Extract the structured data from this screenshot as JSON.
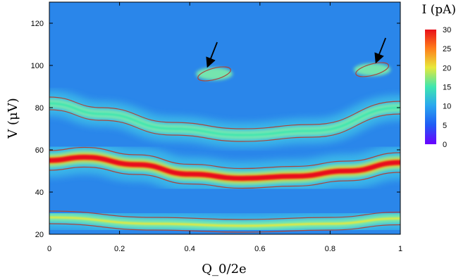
{
  "chart_data": {
    "type": "heatmap",
    "title": "",
    "xlabel": "Q_0/2e",
    "ylabel": "V (μV)",
    "xlim": [
      0,
      1
    ],
    "ylim": [
      20,
      130
    ],
    "x_ticks": [
      "0",
      "0.2",
      "0.4",
      "0.6",
      "0.8",
      "1"
    ],
    "y_ticks": [
      "20",
      "40",
      "60",
      "80",
      "100",
      "120"
    ],
    "colorbar": {
      "label": "I (pA)",
      "range": [
        0,
        30
      ],
      "ticks": [
        "0",
        "5",
        "10",
        "15",
        "20",
        "25",
        "30"
      ]
    },
    "colormap": [
      "#6a00ff",
      "#1f5cf5",
      "#2aa8ee",
      "#3ee6b0",
      "#e8e83a",
      "#ff7a1a",
      "#e8101a"
    ],
    "contour_color": "#a8463c",
    "features": [
      {
        "name": "main current band",
        "x": [
          0,
          0.1,
          0.25,
          0.4,
          0.55,
          0.7,
          0.85,
          1
        ],
        "y": [
          55,
          56.5,
          53,
          48.5,
          46.5,
          47.5,
          50,
          54
        ],
        "current_pA": 30
      },
      {
        "name": "upper arc",
        "x": [
          0,
          0.15,
          0.35,
          0.55,
          0.75,
          1
        ],
        "y": [
          82,
          77,
          70,
          67,
          69,
          80
        ],
        "current_pA": 14
      },
      {
        "name": "lower thin band",
        "x": [
          0,
          0.3,
          0.55,
          0.8,
          1
        ],
        "y": [
          28,
          25,
          24,
          25,
          27.5
        ],
        "current_pA": 18
      },
      {
        "name": "feature near arrow 1",
        "x": [
          0.47
        ],
        "y": [
          96
        ],
        "current_pA": 12
      },
      {
        "name": "feature near arrow 2",
        "x": [
          0.92
        ],
        "y": [
          98
        ],
        "current_pA": 12
      }
    ],
    "annotations": [
      {
        "type": "arrow",
        "x": 0.45,
        "y": 99
      },
      {
        "type": "arrow",
        "x": 0.93,
        "y": 101
      }
    ],
    "grid": false,
    "legend": "colorbar at right"
  }
}
